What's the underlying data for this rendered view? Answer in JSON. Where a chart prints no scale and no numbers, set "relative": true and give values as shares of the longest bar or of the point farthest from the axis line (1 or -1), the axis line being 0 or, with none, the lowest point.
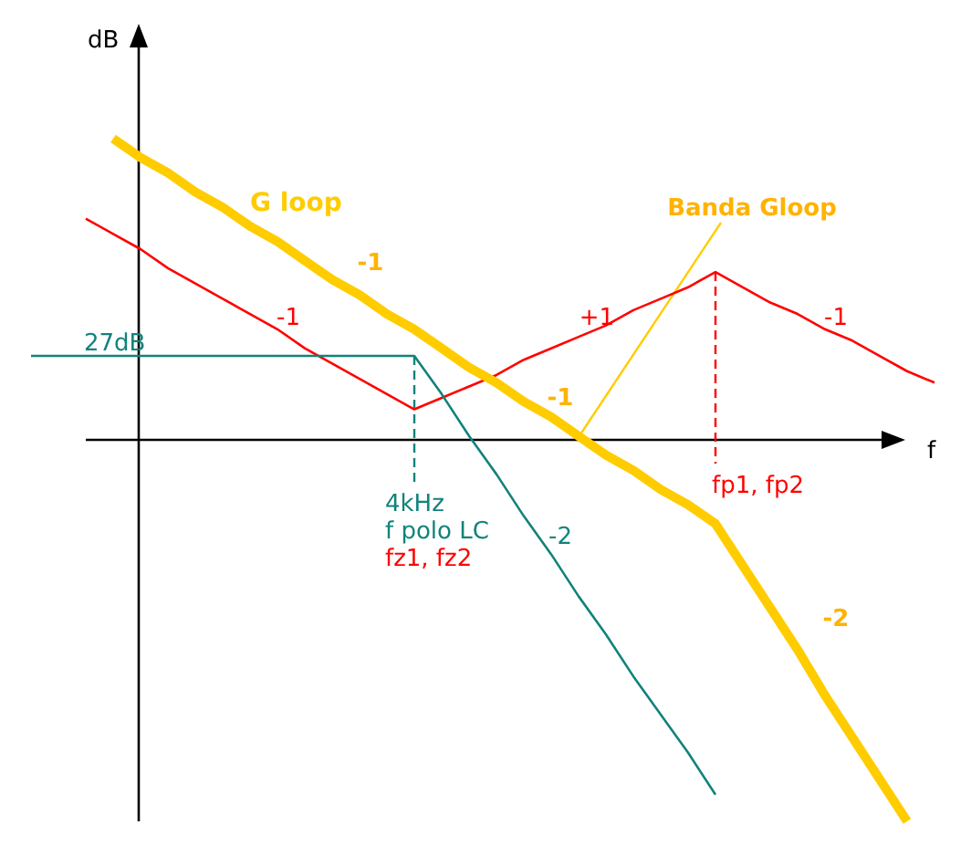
{
  "chart_data": {
    "type": "line",
    "relative": true,
    "xlabel": "f",
    "ylabel": "dB",
    "legend": false,
    "line_style": "solid",
    "categories": [
      null,
      null,
      null,
      null,
      null,
      null,
      null,
      null,
      null,
      null,
      null,
      null,
      null,
      null,
      null,
      null,
      null,
      null,
      null,
      null,
      null,
      null,
      null,
      null,
      null,
      null,
      null,
      null,
      null,
      null,
      null,
      null,
      null,
      null
    ],
    "series": [
      {
        "color": "#ff0000",
        "values": [
          null,
          null,
          0.58,
          0.54,
          0.5,
          0.45,
          0.41,
          0.37,
          0.33,
          0.29,
          0.24,
          0.2,
          0.16,
          0.12,
          0.08,
          0.11,
          0.14,
          0.17,
          0.21,
          0.24,
          0.27,
          0.3,
          0.34,
          0.37,
          0.4,
          0.44,
          0.4,
          0.36,
          0.33,
          0.29,
          0.26,
          0.22,
          0.18,
          0.15
        ]
      },
      {
        "color": "#11837b",
        "values": [
          0.22,
          0.22,
          0.22,
          0.22,
          0.22,
          0.22,
          0.22,
          0.22,
          0.22,
          0.22,
          0.22,
          0.22,
          0.22,
          0.22,
          0.22,
          0.12,
          0.01,
          -0.09,
          -0.2,
          -0.3,
          -0.41,
          -0.51,
          -0.62,
          -0.72,
          -0.82,
          -0.93,
          null,
          null,
          null,
          null,
          null,
          null,
          null,
          null
        ]
      },
      {
        "name": "G loop",
        "color": "#ffcc00",
        "values": [
          null,
          null,
          null,
          0.79,
          0.74,
          0.7,
          0.65,
          0.61,
          0.56,
          0.52,
          0.47,
          0.42,
          0.38,
          0.33,
          0.29,
          0.24,
          0.19,
          0.15,
          0.1,
          0.06,
          0.01,
          -0.04,
          -0.08,
          -0.13,
          -0.17,
          -0.22,
          -0.33,
          -0.44,
          -0.55,
          -0.67,
          -0.78,
          -0.89,
          -1.0,
          null
        ]
      }
    ],
    "annotations": [
      "-1",
      "-1",
      "+1",
      "-1",
      "Banda Gloop",
      "-1",
      "27dB",
      "4kHz",
      "f polo LC",
      "fz1, fz2",
      "-2",
      "fp1, fp2",
      "-2"
    ]
  }
}
